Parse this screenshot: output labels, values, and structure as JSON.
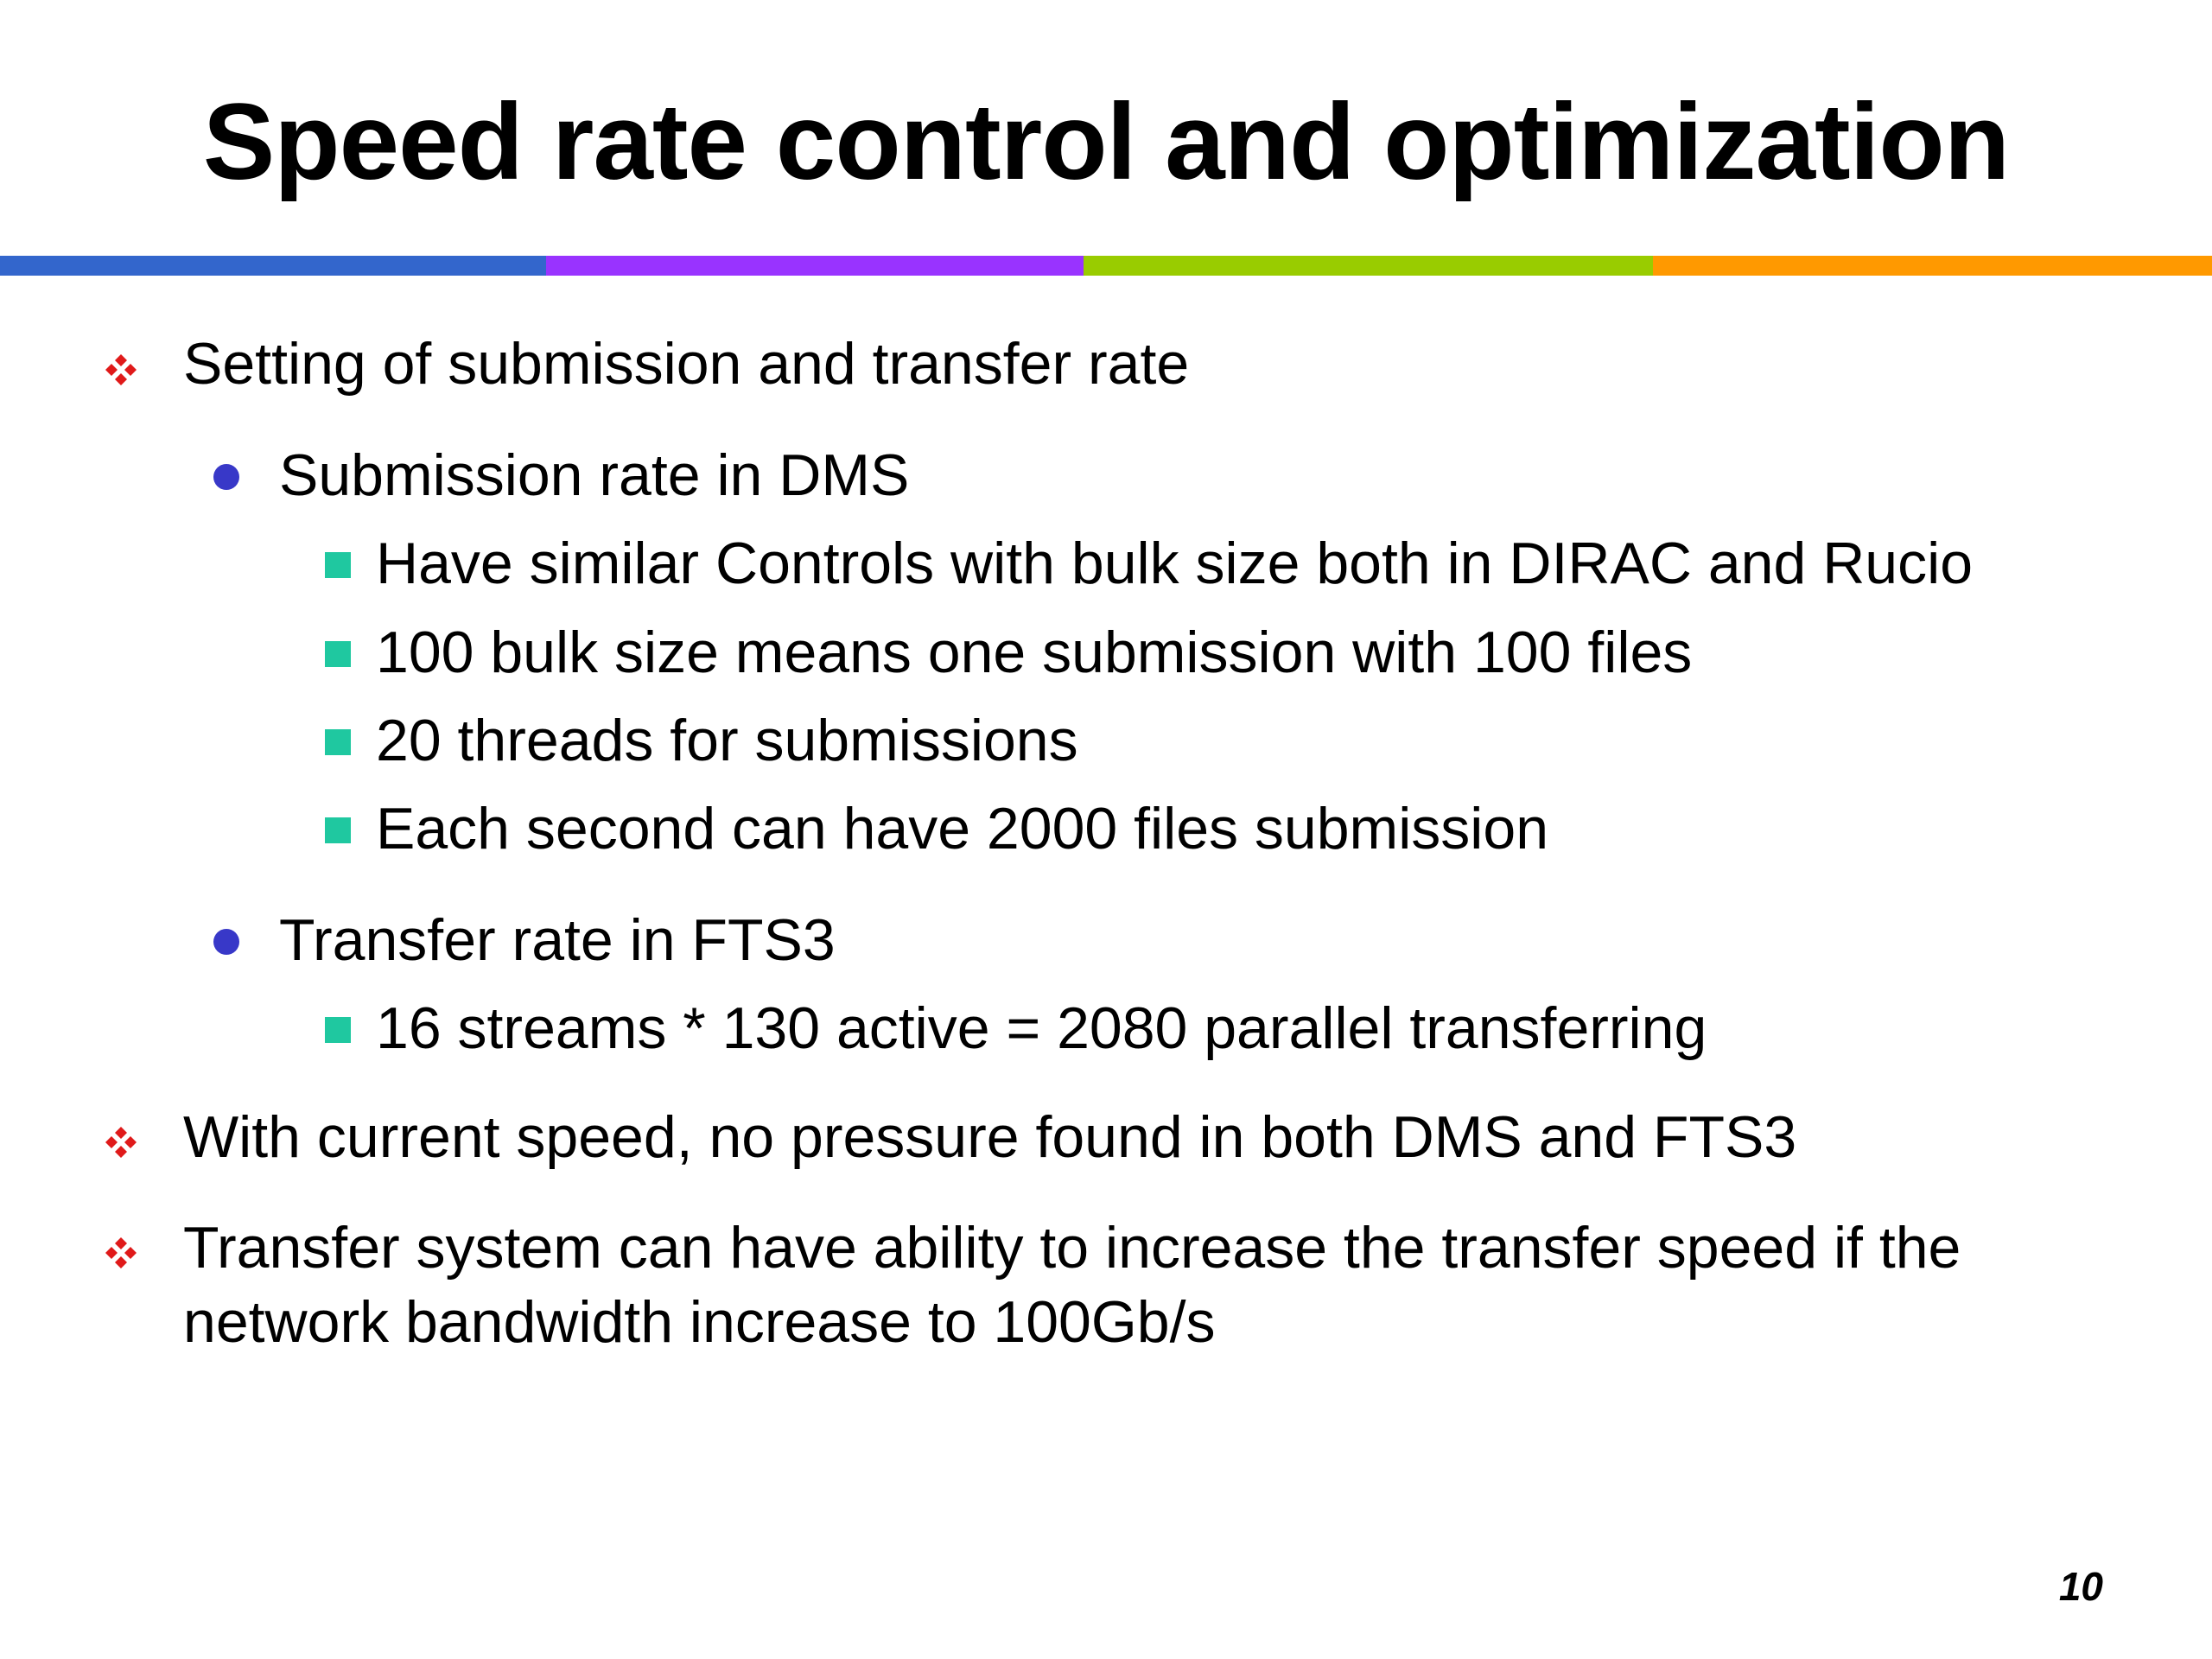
{
  "slide": {
    "title": "Speed rate control and optimization",
    "page_number": "10"
  },
  "colors": {
    "stripe": [
      "#3366cc",
      "#9933ff",
      "#99cc00",
      "#ff9900"
    ],
    "diamond_bullet": "#e01a1a",
    "dot_bullet": "#3838c8",
    "square_bullet": "#1fc8a0"
  },
  "icons": {
    "level1": "diamond-cluster-bullet",
    "level2": "round-bullet",
    "level3": "square-bullet"
  },
  "bullets": {
    "b1": "Setting of submission and transfer rate",
    "b1_1": "Submission rate in DMS",
    "b1_1_1": "Have similar Controls with bulk size both in DIRAC and Rucio",
    "b1_1_2": "100 bulk size means one submission with 100 files",
    "b1_1_3": "20 threads for submissions",
    "b1_1_4": "Each second can have 2000 files submission",
    "b1_2": "Transfer rate in FTS3",
    "b1_2_1": "16 streams * 130 active = 2080 parallel transferring",
    "b2": "With current speed, no pressure found in both DMS and FTS3",
    "b3_line1": "Transfer system can have ability to increase the transfer speed if the",
    "b3_line2": "network bandwidth increase to 100Gb/s"
  }
}
